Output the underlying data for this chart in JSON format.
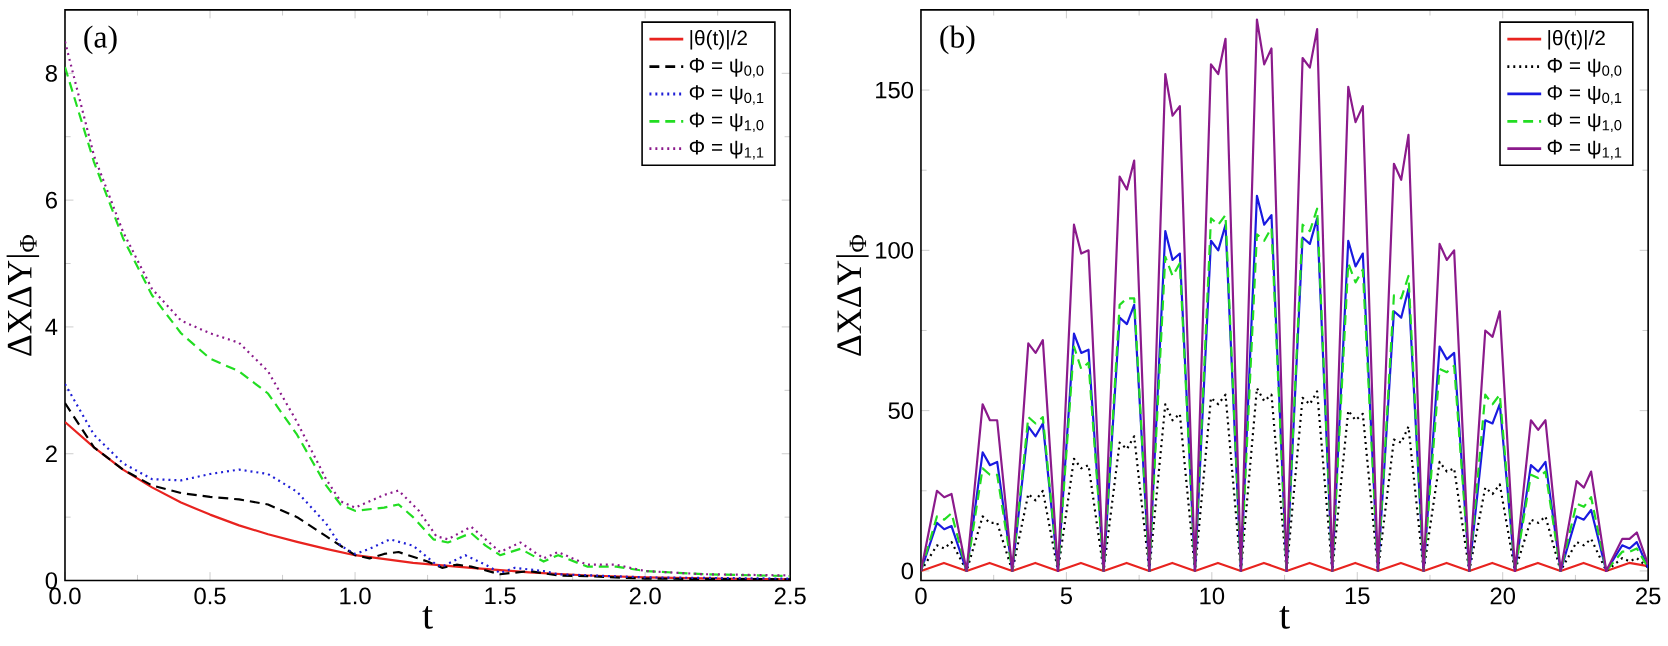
{
  "chart_data": [
    {
      "type": "line",
      "annotations": [
        "(a)"
      ],
      "xlabel": "t",
      "ylabel": "ΔXΔY|$_{Φ}$",
      "xlim": [
        0,
        2.5
      ],
      "ylim": [
        0,
        9
      ],
      "xticks": [
        {
          "value": 0,
          "label": "0.0"
        },
        {
          "value": 0.5,
          "label": "0.5"
        },
        {
          "value": 1,
          "label": "1.0"
        },
        {
          "value": 1.5,
          "label": "1.5"
        },
        {
          "value": 2,
          "label": "2.0"
        },
        {
          "value": 2.5,
          "label": "2.5"
        }
      ],
      "yticks": [
        0,
        2,
        4,
        6,
        8
      ],
      "legend": "top right",
      "series": [
        {
          "name": "|θ(t)|/2",
          "color": "#e8231f",
          "line_style": "solid",
          "x": [
            0,
            0.1,
            0.2,
            0.3,
            0.4,
            0.5,
            0.6,
            0.7,
            0.8,
            0.9,
            1.0,
            1.2,
            1.4,
            1.6,
            1.8,
            2.0,
            2.25,
            2.5
          ],
          "values": [
            2.5,
            2.1,
            1.75,
            1.47,
            1.23,
            1.04,
            0.87,
            0.73,
            0.61,
            0.5,
            0.4,
            0.28,
            0.2,
            0.13,
            0.08,
            0.05,
            0.03,
            0.02
          ]
        },
        {
          "name": "Φ = ψ$_{0,0}$",
          "color": "#000000",
          "line_style": "dashed",
          "x": [
            0,
            0.1,
            0.2,
            0.3,
            0.4,
            0.5,
            0.6,
            0.7,
            0.8,
            0.9,
            1.0,
            1.05,
            1.1,
            1.15,
            1.25,
            1.3,
            1.35,
            1.4,
            1.5,
            1.6,
            1.7,
            1.8,
            2.0,
            2.5
          ],
          "values": [
            2.8,
            2.1,
            1.75,
            1.5,
            1.38,
            1.32,
            1.28,
            1.2,
            1.0,
            0.7,
            0.4,
            0.35,
            0.42,
            0.45,
            0.3,
            0.2,
            0.25,
            0.22,
            0.1,
            0.15,
            0.08,
            0.07,
            0.03,
            0.02
          ]
        },
        {
          "name": "Φ = ψ$_{0,1}$",
          "color": "#1f1fd6",
          "line_style": "dotted",
          "x": [
            0,
            0.1,
            0.2,
            0.3,
            0.4,
            0.5,
            0.6,
            0.7,
            0.8,
            0.9,
            0.95,
            1.0,
            1.05,
            1.12,
            1.2,
            1.28,
            1.3,
            1.38,
            1.45,
            1.5,
            1.55,
            1.65,
            1.7,
            2.0,
            2.5
          ],
          "values": [
            3.1,
            2.3,
            1.85,
            1.6,
            1.58,
            1.68,
            1.75,
            1.68,
            1.4,
            0.9,
            0.55,
            0.42,
            0.5,
            0.65,
            0.55,
            0.25,
            0.22,
            0.4,
            0.25,
            0.12,
            0.2,
            0.15,
            0.1,
            0.05,
            0.03
          ]
        },
        {
          "name": "Φ = ψ$_{1,0}$",
          "color": "#22dd22",
          "line_style": "dashed",
          "x": [
            0,
            0.1,
            0.2,
            0.3,
            0.4,
            0.5,
            0.6,
            0.7,
            0.8,
            0.9,
            0.95,
            1.0,
            1.1,
            1.15,
            1.2,
            1.27,
            1.32,
            1.4,
            1.45,
            1.5,
            1.57,
            1.65,
            1.7,
            1.8,
            1.9,
            2.0,
            2.2,
            2.5
          ],
          "values": [
            8.1,
            6.6,
            5.4,
            4.5,
            3.9,
            3.5,
            3.3,
            2.95,
            2.3,
            1.5,
            1.2,
            1.1,
            1.15,
            1.2,
            1.0,
            0.65,
            0.6,
            0.75,
            0.55,
            0.4,
            0.5,
            0.3,
            0.4,
            0.22,
            0.22,
            0.15,
            0.1,
            0.07
          ]
        },
        {
          "name": "Φ = ψ$_{1,1}$",
          "color": "#8b1a8b",
          "line_style": "dotted",
          "x": [
            0,
            0.1,
            0.2,
            0.3,
            0.4,
            0.5,
            0.6,
            0.7,
            0.8,
            0.9,
            0.95,
            1.0,
            1.1,
            1.15,
            1.22,
            1.28,
            1.32,
            1.4,
            1.45,
            1.5,
            1.57,
            1.65,
            1.7,
            1.8,
            1.9,
            2.0,
            2.2,
            2.5
          ],
          "values": [
            8.5,
            6.7,
            5.5,
            4.6,
            4.1,
            3.9,
            3.75,
            3.3,
            2.5,
            1.6,
            1.25,
            1.15,
            1.35,
            1.42,
            1.1,
            0.7,
            0.65,
            0.85,
            0.65,
            0.45,
            0.6,
            0.35,
            0.45,
            0.25,
            0.25,
            0.15,
            0.1,
            0.08
          ]
        }
      ]
    },
    {
      "type": "line",
      "annotations": [
        "(b)"
      ],
      "xlabel": "t",
      "ylabel": "ΔXΔY|$_{Φ}$",
      "xlim": [
        0,
        25
      ],
      "ylim": [
        -3,
        175
      ],
      "xticks": [
        0,
        5,
        10,
        15,
        20,
        25
      ],
      "yticks": [
        0,
        50,
        100,
        150
      ],
      "legend": "top right",
      "x": [
        0,
        0.55,
        0.8,
        1.05,
        1.57,
        2.12,
        2.37,
        2.62,
        3.14,
        3.69,
        3.94,
        4.19,
        4.71,
        5.26,
        5.51,
        5.76,
        6.28,
        6.83,
        7.08,
        7.33,
        7.85,
        8.4,
        8.65,
        8.9,
        9.42,
        9.97,
        10.22,
        10.47,
        11.0,
        11.55,
        11.8,
        12.05,
        12.57,
        13.12,
        13.37,
        13.62,
        14.14,
        14.69,
        14.94,
        15.19,
        15.71,
        16.26,
        16.51,
        16.76,
        17.28,
        17.83,
        18.08,
        18.33,
        18.85,
        19.4,
        19.65,
        19.9,
        20.42,
        20.97,
        21.22,
        21.47,
        21.99,
        22.54,
        22.79,
        23.04,
        23.56,
        24.11,
        24.36,
        24.61,
        25
      ],
      "series": [
        {
          "name": "|θ(t)|/2",
          "color": "#e8231f",
          "line_style": "solid",
          "x": [
            0,
            0.79,
            1.57,
            2.36,
            3.14,
            3.93,
            4.71,
            5.5,
            6.28,
            7.07,
            7.85,
            8.64,
            9.42,
            10.21,
            11.0,
            11.79,
            12.57,
            13.36,
            14.14,
            14.93,
            15.71,
            16.5,
            17.28,
            18.07,
            18.85,
            19.64,
            20.42,
            21.21,
            21.99,
            22.78,
            23.56,
            24.35,
            25
          ],
          "values": [
            0,
            2.5,
            0,
            2.5,
            0,
            2.5,
            0,
            2.5,
            0,
            2.5,
            0,
            2.5,
            0,
            2.5,
            0,
            2.5,
            0,
            2.5,
            0,
            2.5,
            0,
            2.5,
            0,
            2.5,
            0,
            2.5,
            0,
            2.5,
            0,
            2.5,
            0,
            2.5,
            1.5
          ]
        },
        {
          "name": "Φ = ψ$_{0,0}$",
          "color": "#000000",
          "line_style": "dotted",
          "values": [
            0,
            8,
            7,
            9,
            0,
            17,
            15,
            15,
            0,
            24,
            22,
            25,
            0,
            35,
            32,
            33,
            0,
            40,
            38,
            42,
            0,
            52,
            47,
            49,
            0,
            54,
            52,
            55,
            0,
            57,
            53,
            55,
            0,
            54,
            52,
            56,
            0,
            50,
            47,
            49,
            0,
            41,
            40,
            45,
            0,
            34,
            31,
            32,
            0,
            26,
            24,
            27,
            0,
            16,
            15,
            17,
            0,
            9,
            8,
            10,
            0,
            4,
            3,
            4,
            1
          ]
        },
        {
          "name": "Φ = ψ$_{0,1}$",
          "color": "#1a1ae0",
          "line_style": "solid",
          "values": [
            0,
            15,
            13,
            14,
            0,
            37,
            33,
            34,
            0,
            45,
            42,
            46,
            0,
            74,
            68,
            69,
            0,
            79,
            77,
            83,
            0,
            106,
            97,
            99,
            0,
            103,
            100,
            108,
            0,
            117,
            108,
            111,
            0,
            104,
            102,
            110,
            0,
            103,
            95,
            99,
            0,
            81,
            79,
            88,
            0,
            70,
            66,
            68,
            0,
            47,
            46,
            52,
            0,
            33,
            31,
            34,
            0,
            17,
            16,
            19,
            0,
            8,
            7,
            9,
            1
          ]
        },
        {
          "name": "Φ = ψ$_{1,0}$",
          "color": "#22dd22",
          "line_style": "dashed",
          "values": [
            0,
            17,
            16,
            18,
            0,
            32,
            30,
            30,
            0,
            48,
            46,
            48,
            0,
            70,
            63,
            65,
            0,
            83,
            85,
            85,
            0,
            98,
            92,
            96,
            0,
            110,
            108,
            111,
            0,
            105,
            103,
            107,
            0,
            108,
            106,
            113,
            0,
            96,
            90,
            94,
            0,
            86,
            85,
            92,
            0,
            63,
            62,
            64,
            0,
            55,
            52,
            55,
            0,
            30,
            29,
            31,
            0,
            21,
            20,
            23,
            0,
            6,
            6,
            7,
            1
          ]
        },
        {
          "name": "Φ = ψ$_{1,1}$",
          "color": "#8b1a8b",
          "line_style": "solid",
          "values": [
            0,
            25,
            23,
            24,
            0,
            52,
            47,
            47,
            0,
            71,
            68,
            72,
            0,
            108,
            99,
            100,
            0,
            123,
            119,
            128,
            0,
            155,
            142,
            145,
            0,
            158,
            155,
            166,
            0,
            172,
            158,
            163,
            0,
            160,
            157,
            169,
            0,
            151,
            140,
            145,
            0,
            127,
            122,
            136,
            0,
            102,
            97,
            100,
            0,
            75,
            73,
            81,
            0,
            47,
            44,
            47,
            0,
            28,
            26,
            31,
            0,
            10,
            10,
            12,
            2
          ]
        }
      ]
    }
  ]
}
